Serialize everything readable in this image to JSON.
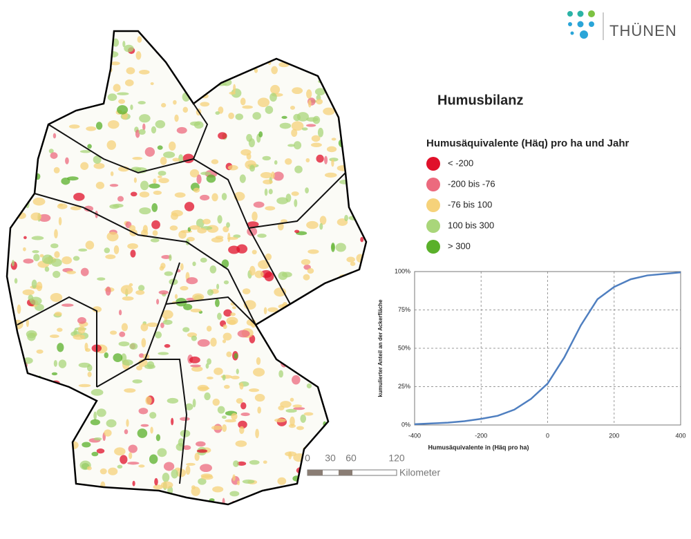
{
  "logo": {
    "text": "THÜNEN"
  },
  "title": "Humusbilanz",
  "legend": {
    "title": "Humusäquivalente (Häq) pro ha und Jahr",
    "items": [
      {
        "label": "< -200",
        "color": "#e0102a"
      },
      {
        "label": "-200 bis -76",
        "color": "#ec6a7e"
      },
      {
        "label": "-76 bis 100",
        "color": "#f6d27a"
      },
      {
        "label": "100 bis 300",
        "color": "#a9d67a"
      },
      {
        "label": "> 300",
        "color": "#5ab02a"
      }
    ]
  },
  "scale_bar": {
    "labels": [
      0,
      30,
      60,
      120
    ],
    "unit": "Kilometer"
  },
  "chart_data": {
    "type": "line",
    "x_label": "Humusäquivalente in (Häq pro ha)",
    "y_label": "kumulierter Anteil an der Ackerfläche",
    "x": [
      -400,
      -350,
      -300,
      -250,
      -200,
      -150,
      -100,
      -50,
      0,
      50,
      100,
      150,
      200,
      250,
      300,
      350,
      400
    ],
    "series": [
      {
        "color": "#4f7fc0",
        "values": [
          0.5,
          1,
          1.5,
          2.5,
          4,
          6,
          10,
          17,
          27,
          44,
          65,
          82,
          90,
          95,
          97.5,
          98.5,
          99.5
        ]
      }
    ],
    "xlim": [
      -400,
      400
    ],
    "xticks": [
      -400,
      -200,
      0,
      200,
      400
    ],
    "ylim": [
      0,
      100
    ],
    "yticks": [
      {
        "value": 0,
        "label": "0%"
      },
      {
        "value": 25,
        "label": "25%"
      },
      {
        "value": 50,
        "label": "50%"
      },
      {
        "value": 75,
        "label": "75%"
      },
      {
        "value": 100,
        "label": "100%"
      }
    ],
    "grid": true
  }
}
